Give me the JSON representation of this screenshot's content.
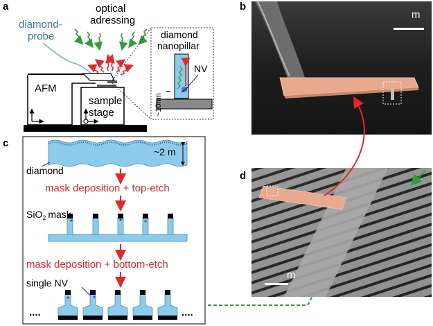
{
  "panels": {
    "a": {
      "label": "a",
      "diamond_probe": [
        "diamond-",
        "probe"
      ],
      "optical": [
        "optical",
        "adressing"
      ],
      "afm": "AFM",
      "sample_stage": [
        "sample",
        "stage"
      ],
      "nanopillar": [
        "diamond",
        "nanopillar"
      ],
      "nv": "NV",
      "scale": "~10nm"
    },
    "b": {
      "label": "b",
      "scalebar": "m"
    },
    "c": {
      "label": "c",
      "diamond": "diamond",
      "thickness": "~2  m",
      "step1": "mask deposition + top-etch",
      "mask_label": "SiO",
      "mask_sub": "2",
      "mask_word": "mask",
      "step2": "mask deposition + bottom-etch",
      "single_nv": "single NV",
      "dots_left": "....",
      "dots_right": "...."
    },
    "d": {
      "label": "d",
      "scalebar": "m"
    }
  },
  "colors": {
    "diamond_blue": "#8ccbea",
    "red": "#e8262a",
    "green": "#2e9e3c",
    "pink": "#e9a98f"
  }
}
